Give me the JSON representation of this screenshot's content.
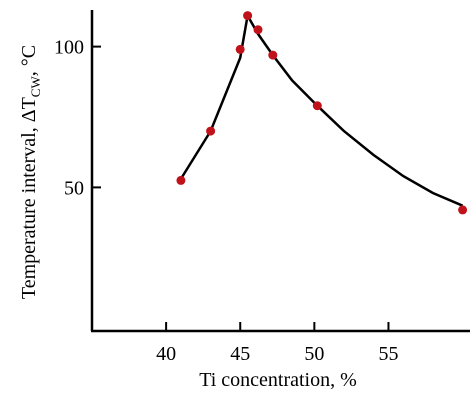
{
  "chart_data": {
    "type": "scatter",
    "title": "",
    "xlabel": "Ti concentration, %",
    "ylabel_main": "Temperature interval, ΔT",
    "ylabel_sub": "CW",
    "ylabel_unit": ", °C",
    "xlim": [
      35,
      60.5
    ],
    "ylim": [
      -1,
      113
    ],
    "x_ticks": [
      40,
      45,
      50,
      55
    ],
    "y_ticks": [
      50,
      100
    ],
    "x_tick_labels": [
      "40",
      "45",
      "50",
      "55"
    ],
    "y_tick_labels": [
      "50",
      "100"
    ],
    "grid": false,
    "point_color": "#c0121a",
    "series": [
      {
        "x": [
          41.0,
          43.0,
          45.0,
          45.5,
          46.2,
          47.2,
          50.2,
          60.0
        ],
        "y": [
          52.5,
          70,
          99,
          111,
          106,
          97,
          79,
          42
        ]
      }
    ],
    "curve": {
      "x": [
        41.0,
        43.0,
        45.0,
        45.5,
        46.2,
        47.2,
        48.5,
        50.2,
        52,
        54,
        56,
        58,
        60.0
      ],
      "y": [
        53,
        70,
        96,
        111,
        104.5,
        97,
        88,
        79,
        70,
        61.5,
        54,
        48,
        43.5
      ]
    }
  }
}
